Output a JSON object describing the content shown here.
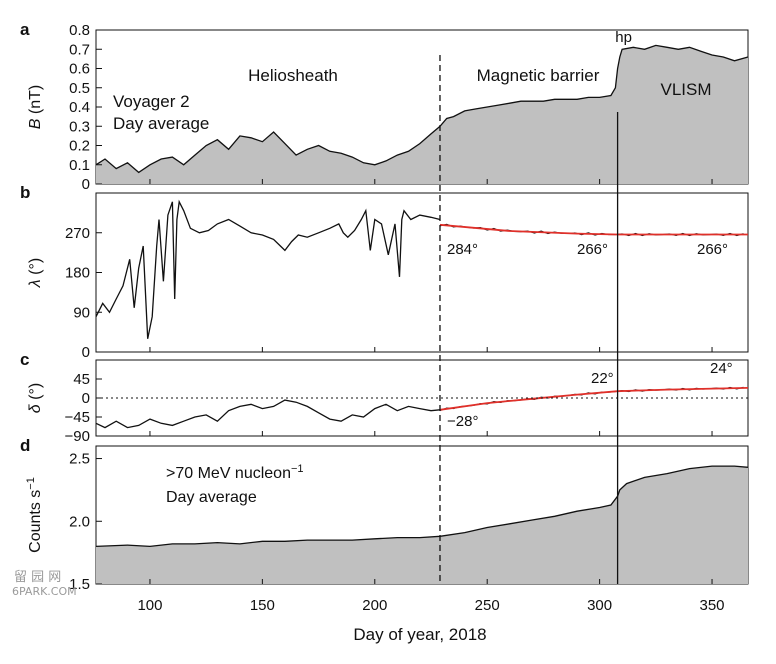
{
  "colors": {
    "area": "#c0c0c0",
    "line": "#111111",
    "fit": "#e0302a",
    "background": "#ffffff"
  },
  "watermark": {
    "line1": "留 园 网",
    "line2": "6PARK.COM"
  },
  "xaxis": {
    "label": "Day of year, 2018",
    "ticks": [
      100,
      150,
      200,
      250,
      300,
      350
    ],
    "range": [
      76,
      366
    ]
  },
  "markers": {
    "dashed_day": 229,
    "hp_day": 308,
    "hp_label": "hp"
  },
  "region_labels": {
    "heliosheath": "Heliosheath",
    "barrier": "Magnetic barrier",
    "vlism": "VLISM"
  },
  "panel_letters": [
    "a",
    "b",
    "c",
    "d"
  ],
  "chart_data": [
    {
      "type": "area",
      "panel": "a",
      "ylabel_var": "B",
      "ylabel_unit": " (nT)",
      "ylim": [
        0,
        0.8
      ],
      "yticks": [
        "0",
        "0.1",
        "0.2",
        "0.3",
        "0.4",
        "0.5",
        "0.6",
        "0.7",
        "0.8"
      ],
      "annotation": [
        "Voyager 2",
        "Day average"
      ],
      "x": [
        76,
        80,
        85,
        90,
        95,
        100,
        105,
        110,
        115,
        120,
        125,
        130,
        135,
        140,
        145,
        150,
        155,
        160,
        165,
        170,
        175,
        180,
        185,
        190,
        195,
        200,
        205,
        210,
        215,
        220,
        225,
        229,
        232,
        235,
        240,
        245,
        250,
        255,
        260,
        265,
        270,
        275,
        280,
        285,
        290,
        295,
        300,
        305,
        307,
        308,
        309,
        310,
        315,
        320,
        325,
        330,
        335,
        340,
        345,
        350,
        355,
        360,
        366
      ],
      "y": [
        0.1,
        0.13,
        0.08,
        0.11,
        0.06,
        0.1,
        0.13,
        0.14,
        0.1,
        0.15,
        0.2,
        0.23,
        0.18,
        0.25,
        0.24,
        0.22,
        0.27,
        0.21,
        0.15,
        0.18,
        0.2,
        0.17,
        0.16,
        0.14,
        0.11,
        0.1,
        0.12,
        0.15,
        0.17,
        0.21,
        0.26,
        0.3,
        0.34,
        0.35,
        0.38,
        0.39,
        0.4,
        0.41,
        0.42,
        0.43,
        0.43,
        0.43,
        0.44,
        0.44,
        0.44,
        0.45,
        0.45,
        0.46,
        0.5,
        0.6,
        0.66,
        0.7,
        0.71,
        0.7,
        0.72,
        0.71,
        0.7,
        0.71,
        0.69,
        0.67,
        0.66,
        0.64,
        0.66
      ]
    },
    {
      "type": "line",
      "panel": "b",
      "ylabel_var": "λ",
      "ylabel_unit": " (°)",
      "ylim": [
        0,
        360
      ],
      "yticks": [
        "0",
        "90",
        "180",
        "270"
      ],
      "x": [
        76,
        79,
        82,
        85,
        88,
        91,
        93,
        95,
        97,
        99,
        101,
        103,
        104,
        106,
        108,
        110,
        111,
        112,
        113,
        115,
        118,
        122,
        126,
        130,
        135,
        140,
        145,
        150,
        155,
        158,
        160,
        163,
        166,
        170,
        175,
        180,
        184,
        186,
        188,
        191,
        194,
        196,
        198,
        200,
        203,
        206,
        209,
        211,
        212,
        213,
        216,
        220,
        225,
        229
      ],
      "y": [
        80,
        110,
        90,
        120,
        150,
        210,
        100,
        190,
        240,
        30,
        80,
        240,
        300,
        160,
        310,
        340,
        120,
        300,
        340,
        320,
        280,
        270,
        275,
        290,
        300,
        285,
        270,
        265,
        255,
        240,
        230,
        250,
        265,
        260,
        270,
        280,
        290,
        270,
        260,
        275,
        300,
        320,
        230,
        300,
        290,
        220,
        290,
        170,
        300,
        320,
        300,
        310,
        305,
        300
      ],
      "fit": {
        "x": [
          229,
          260,
          290,
          308,
          330,
          366
        ],
        "y": [
          288,
          274,
          268,
          266,
          266,
          266
        ]
      },
      "annotations": [
        "284°",
        "266°",
        "266°"
      ]
    },
    {
      "type": "line",
      "panel": "c",
      "ylabel_var": "δ",
      "ylabel_unit": " (°)",
      "ylim": [
        -90,
        90
      ],
      "yticks": [
        "−90",
        "−45",
        "0",
        "45"
      ],
      "x": [
        76,
        80,
        85,
        90,
        95,
        100,
        105,
        110,
        115,
        120,
        125,
        130,
        135,
        140,
        145,
        150,
        155,
        160,
        165,
        170,
        175,
        180,
        185,
        190,
        195,
        200,
        205,
        210,
        215,
        220,
        225,
        229
      ],
      "y": [
        -60,
        -70,
        -55,
        -70,
        -65,
        -50,
        -60,
        -65,
        -55,
        -45,
        -40,
        -55,
        -30,
        -20,
        -15,
        -25,
        -20,
        -5,
        -10,
        -20,
        -35,
        -50,
        -55,
        -40,
        -45,
        -25,
        -15,
        -30,
        -20,
        -25,
        -30,
        -28
      ],
      "fit": {
        "x": [
          229,
          250,
          270,
          290,
          308,
          330,
          366
        ],
        "y": [
          -28,
          -12,
          -2,
          8,
          16,
          20,
          24
        ]
      },
      "annotations": [
        "−28°",
        "22°",
        "24°"
      ]
    },
    {
      "type": "area",
      "panel": "d",
      "ylabel": "Counts s",
      "ylabel_sup": "−1",
      "ylim": [
        1.5,
        2.6
      ],
      "yticks": [
        "1.5",
        "2.0",
        "2.5"
      ],
      "annotation": [
        ">70 MeV nucleon",
        "Day average"
      ],
      "annotation_sup": "−1",
      "x": [
        76,
        90,
        100,
        110,
        120,
        130,
        140,
        150,
        160,
        170,
        180,
        190,
        200,
        210,
        220,
        229,
        240,
        250,
        260,
        270,
        280,
        290,
        300,
        305,
        308,
        309,
        312,
        320,
        330,
        340,
        350,
        360,
        366
      ],
      "y": [
        1.8,
        1.81,
        1.8,
        1.82,
        1.82,
        1.83,
        1.82,
        1.84,
        1.84,
        1.85,
        1.85,
        1.85,
        1.86,
        1.87,
        1.87,
        1.88,
        1.91,
        1.95,
        1.98,
        2.01,
        2.04,
        2.08,
        2.11,
        2.13,
        2.2,
        2.25,
        2.3,
        2.35,
        2.38,
        2.42,
        2.44,
        2.44,
        2.43
      ]
    }
  ]
}
